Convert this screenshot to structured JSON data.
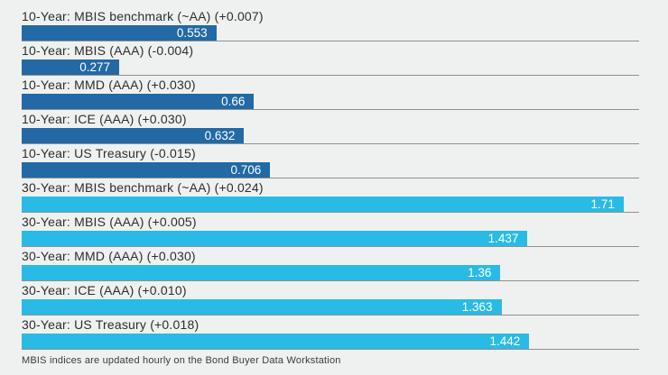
{
  "chart_data": {
    "type": "bar",
    "orientation": "horizontal",
    "title": "",
    "xlabel": "",
    "ylabel": "",
    "xlim": [
      0,
      1.754
    ],
    "grid": false,
    "legend": false,
    "bar_colors": {
      "10-Year": "#2269a5",
      "30-Year": "#29bbe5"
    },
    "value_label_color": "#ffffff",
    "rows": [
      {
        "group": "10-Year",
        "label": "10-Year: MBIS benchmark (~AA) (+0.007)",
        "value": 0.553,
        "display_value": "0.553"
      },
      {
        "group": "10-Year",
        "label": "10-Year: MBIS (AAA) (-0.004)",
        "value": 0.277,
        "display_value": "0.277"
      },
      {
        "group": "10-Year",
        "label": "10-Year: MMD (AAA) (+0.030)",
        "value": 0.66,
        "display_value": "0.66"
      },
      {
        "group": "10-Year",
        "label": "10-Year: ICE (AAA) (+0.030)",
        "value": 0.632,
        "display_value": "0.632"
      },
      {
        "group": "10-Year",
        "label": "10-Year: US Treasury (-0.015)",
        "value": 0.706,
        "display_value": "0.706"
      },
      {
        "group": "30-Year",
        "label": "30-Year: MBIS benchmark (~AA) (+0.024)",
        "value": 1.71,
        "display_value": "1.71"
      },
      {
        "group": "30-Year",
        "label": "30-Year: MBIS (AAA) (+0.005)",
        "value": 1.437,
        "display_value": "1.437"
      },
      {
        "group": "30-Year",
        "label": "30-Year: MMD (AAA) (+0.030)",
        "value": 1.36,
        "display_value": "1.36"
      },
      {
        "group": "30-Year",
        "label": "30-Year: ICE (AAA) (+0.010)",
        "value": 1.363,
        "display_value": "1.363"
      },
      {
        "group": "30-Year",
        "label": "30-Year: US Treasury (+0.018)",
        "value": 1.442,
        "display_value": "1.442"
      }
    ]
  },
  "footer": {
    "note": "MBIS indices are updated hourly on the Bond Buyer Data Workstation"
  },
  "theme": {
    "background": "#eff1f0",
    "separator": "#8f9191",
    "label_color": "#2d2d2d"
  }
}
